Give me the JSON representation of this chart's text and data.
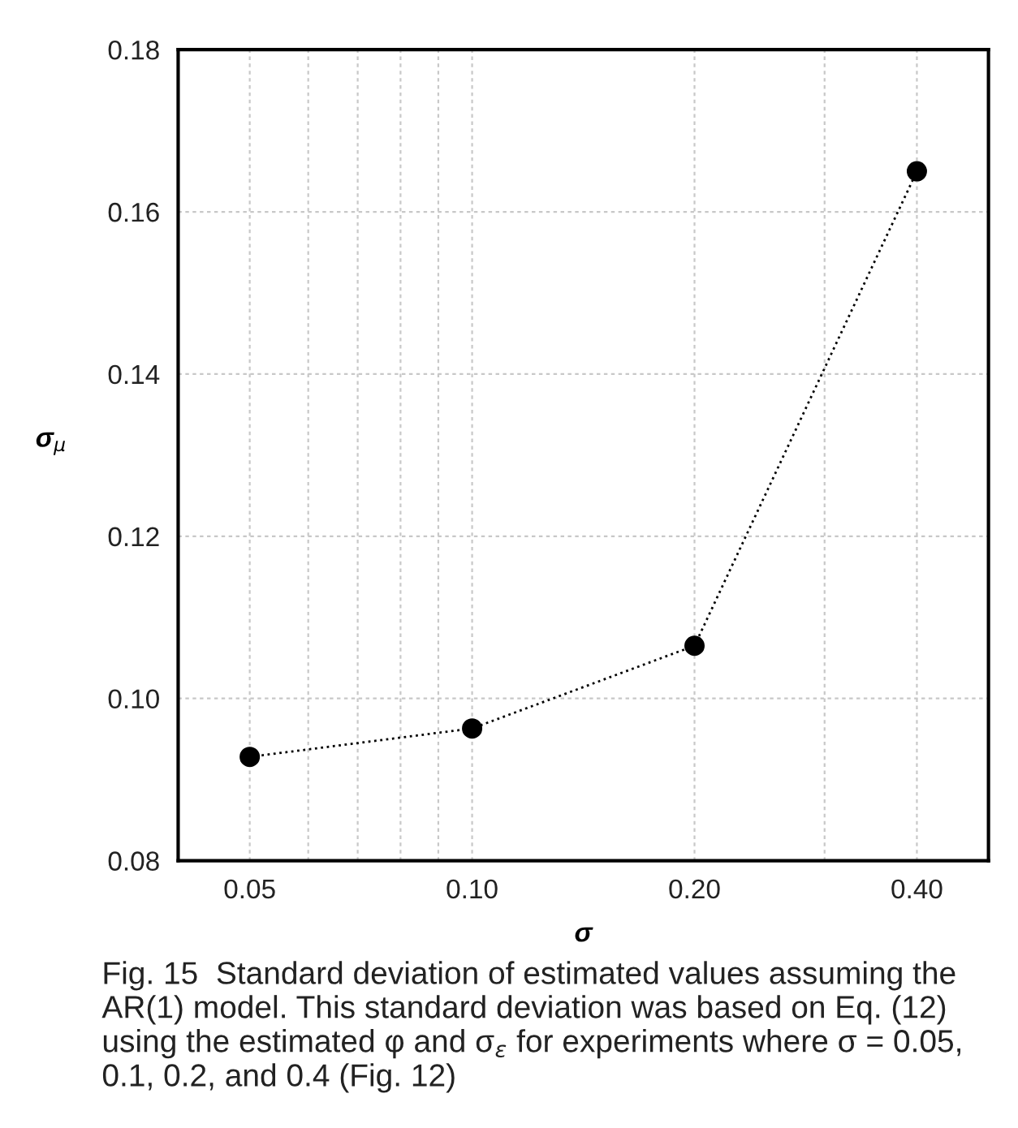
{
  "chart_data": {
    "type": "line",
    "xlabel": "σ",
    "ylabel": "σ$_{μ}$",
    "x": [
      0.05,
      0.1,
      0.2,
      0.4
    ],
    "series": [
      {
        "color": "#000000",
        "values": [
          0.0928,
          0.0963,
          0.1065,
          0.165
        ]
      }
    ],
    "log": "x",
    "xlim": [
      0.04,
      0.5
    ],
    "xticks": [
      {
        "value": 0.05,
        "label": "0.05"
      },
      {
        "value": 0.06,
        "label": null
      },
      {
        "value": 0.07,
        "label": null
      },
      {
        "value": 0.08,
        "label": null
      },
      {
        "value": 0.09,
        "label": null
      },
      {
        "value": 0.1,
        "label": "0.10"
      },
      {
        "value": 0.2,
        "label": "0.20"
      },
      {
        "value": 0.3,
        "label": null
      },
      {
        "value": 0.4,
        "label": "0.40"
      }
    ],
    "ylim": [
      0.08,
      0.18
    ],
    "yticks": [
      {
        "value": 0.08,
        "label": "0.08"
      },
      {
        "value": 0.1,
        "label": "0.10"
      },
      {
        "value": 0.12,
        "label": "0.12"
      },
      {
        "value": 0.14,
        "label": "0.14"
      },
      {
        "value": 0.16,
        "label": "0.16"
      },
      {
        "value": 0.18,
        "label": "0.18"
      }
    ],
    "grid": true,
    "marker": "circle",
    "line_style": "dotted",
    "annotations": [
      "Fig. 15  Standard deviation of estimated values assuming the AR(1) model. This standard deviation was based on Eq. (12) using the estimated φ and σ$_{ε}$ for experiments where σ = 0.05, 0.1, 0.2, and 0.4 (Fig. 12)"
    ]
  }
}
